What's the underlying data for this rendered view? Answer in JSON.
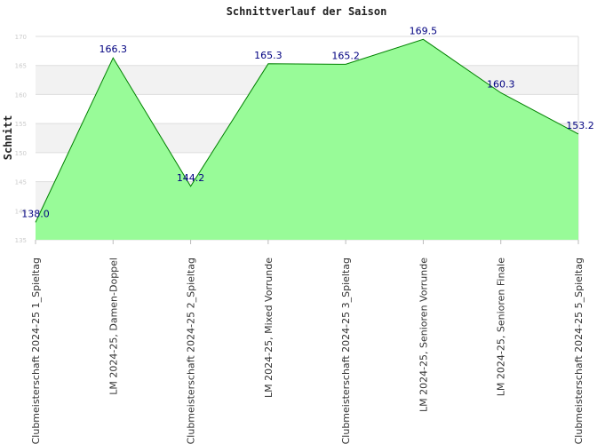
{
  "chart_data": {
    "type": "area",
    "title": "Schnittverlauf der Saison",
    "xlabel": "",
    "ylabel": "Schnitt",
    "ylim": [
      135,
      170
    ],
    "yticks": [
      135,
      140,
      145,
      150,
      155,
      160,
      165,
      170
    ],
    "categories": [
      "Clubmeisterschaft 2024-25   1_Spieltag",
      "LM 2024-25, Damen-Doppel",
      "Clubmeisterschaft 2024-25   2_Spieltag",
      "LM 2024-25, Mixed Vorrunde",
      "Clubmeisterschaft 2024-25   3_Spieltag",
      "LM 2024-25, Senioren Vorrunde",
      "LM 2024-25, Senioren Finale",
      "Clubmeisterschaft 2024-25   5_Spieltag"
    ],
    "values": [
      138.0,
      166.3,
      144.2,
      165.3,
      165.2,
      169.5,
      160.3,
      153.2
    ],
    "labels": [
      "138.0",
      "166.3",
      "144.2",
      "165.3",
      "165.2",
      "169.5",
      "160.3",
      "153.2"
    ],
    "grid": true,
    "band_colors": [
      "#ffffff",
      "#f2f2f2"
    ],
    "fill_color": "#98fb98",
    "line_color": "#008000",
    "label_color": "#000080",
    "highlight_label_color": "#008000"
  }
}
